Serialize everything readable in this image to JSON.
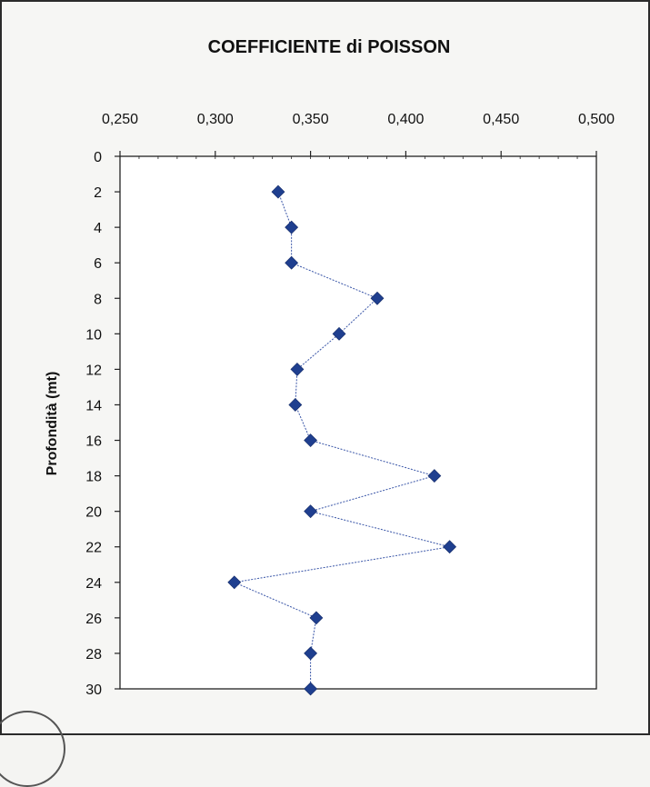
{
  "chart_data": {
    "type": "line",
    "title": "COEFFICIENTE di POISSON",
    "xlabel": "",
    "ylabel": "Profondità (mt)",
    "x_axis_position": "top",
    "y_axis_inverted": true,
    "xlim": [
      0.25,
      0.5
    ],
    "ylim": [
      0,
      30
    ],
    "x_ticks": [
      "0,250",
      "0,300",
      "0,350",
      "0,400",
      "0,450",
      "0,500"
    ],
    "x_tick_values": [
      0.25,
      0.3,
      0.35,
      0.4,
      0.45,
      0.5
    ],
    "y_ticks": [
      "0",
      "2",
      "4",
      "6",
      "8",
      "10",
      "12",
      "14",
      "16",
      "18",
      "20",
      "22",
      "24",
      "26",
      "28",
      "30"
    ],
    "y_tick_values": [
      0,
      2,
      4,
      6,
      8,
      10,
      12,
      14,
      16,
      18,
      20,
      22,
      24,
      26,
      28,
      30
    ],
    "grid": false,
    "legend": "none",
    "series": [
      {
        "marker": "diamond",
        "color": "#1f3f8f",
        "points": [
          {
            "x": 0.333,
            "y": 2
          },
          {
            "x": 0.34,
            "y": 4
          },
          {
            "x": 0.34,
            "y": 6
          },
          {
            "x": 0.385,
            "y": 8
          },
          {
            "x": 0.365,
            "y": 10
          },
          {
            "x": 0.343,
            "y": 12
          },
          {
            "x": 0.342,
            "y": 14
          },
          {
            "x": 0.35,
            "y": 16
          },
          {
            "x": 0.415,
            "y": 18
          },
          {
            "x": 0.35,
            "y": 20
          },
          {
            "x": 0.423,
            "y": 22
          },
          {
            "x": 0.31,
            "y": 24
          },
          {
            "x": 0.353,
            "y": 26
          },
          {
            "x": 0.35,
            "y": 28
          },
          {
            "x": 0.35,
            "y": 30
          }
        ]
      }
    ]
  }
}
